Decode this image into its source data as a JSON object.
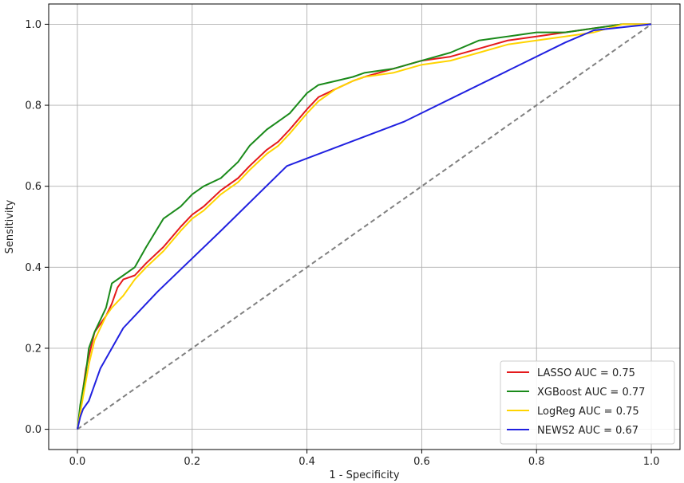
{
  "chart_data": {
    "type": "line",
    "title": "",
    "xlabel": "1 - Specificity",
    "ylabel": "Sensitivity",
    "xlim": [
      -0.05,
      1.05
    ],
    "ylim": [
      -0.05,
      1.05
    ],
    "xticks": [
      0.0,
      0.2,
      0.4,
      0.6,
      0.8,
      1.0
    ],
    "yticks": [
      0.0,
      0.2,
      0.4,
      0.6,
      0.8,
      1.0
    ],
    "xtick_labels": [
      "0.0",
      "0.2",
      "0.4",
      "0.6",
      "0.8",
      "1.0"
    ],
    "ytick_labels": [
      "0.0",
      "0.2",
      "0.4",
      "0.6",
      "0.8",
      "1.0"
    ],
    "grid": true,
    "legend_position": "lower-right",
    "reference_line": {
      "x": [
        0,
        1
      ],
      "y": [
        0,
        1
      ],
      "color": "#808080",
      "style": "dashed"
    },
    "series": [
      {
        "name": "LASSO AUC = 0.75",
        "color": "#e41a1c",
        "x": [
          0.0,
          0.005,
          0.01,
          0.015,
          0.02,
          0.025,
          0.03,
          0.04,
          0.05,
          0.06,
          0.07,
          0.08,
          0.1,
          0.12,
          0.15,
          0.18,
          0.2,
          0.22,
          0.25,
          0.28,
          0.3,
          0.33,
          0.35,
          0.37,
          0.4,
          0.42,
          0.45,
          0.48,
          0.5,
          0.55,
          0.6,
          0.65,
          0.7,
          0.75,
          0.8,
          0.85,
          0.9,
          0.95,
          1.0
        ],
        "y": [
          0.0,
          0.05,
          0.1,
          0.15,
          0.18,
          0.21,
          0.24,
          0.26,
          0.28,
          0.31,
          0.35,
          0.37,
          0.38,
          0.41,
          0.45,
          0.5,
          0.53,
          0.55,
          0.59,
          0.62,
          0.65,
          0.69,
          0.71,
          0.74,
          0.79,
          0.82,
          0.84,
          0.86,
          0.87,
          0.89,
          0.91,
          0.92,
          0.94,
          0.96,
          0.97,
          0.98,
          0.99,
          1.0,
          1.0
        ]
      },
      {
        "name": "XGBoost AUC = 0.77",
        "color": "#1a8a1a",
        "x": [
          0.0,
          0.005,
          0.01,
          0.015,
          0.02,
          0.025,
          0.03,
          0.04,
          0.05,
          0.06,
          0.08,
          0.1,
          0.12,
          0.15,
          0.18,
          0.2,
          0.22,
          0.25,
          0.28,
          0.3,
          0.33,
          0.35,
          0.37,
          0.4,
          0.42,
          0.45,
          0.48,
          0.5,
          0.55,
          0.6,
          0.65,
          0.7,
          0.75,
          0.8,
          0.85,
          0.9,
          0.95,
          1.0
        ],
        "y": [
          0.0,
          0.06,
          0.1,
          0.14,
          0.2,
          0.22,
          0.24,
          0.27,
          0.3,
          0.36,
          0.38,
          0.4,
          0.45,
          0.52,
          0.55,
          0.58,
          0.6,
          0.62,
          0.66,
          0.7,
          0.74,
          0.76,
          0.78,
          0.83,
          0.85,
          0.86,
          0.87,
          0.88,
          0.89,
          0.91,
          0.93,
          0.96,
          0.97,
          0.98,
          0.98,
          0.99,
          1.0,
          1.0
        ]
      },
      {
        "name": "LogReg AUC = 0.75",
        "color": "#ffd400",
        "x": [
          0.0,
          0.005,
          0.01,
          0.015,
          0.02,
          0.025,
          0.03,
          0.04,
          0.05,
          0.06,
          0.08,
          0.1,
          0.12,
          0.15,
          0.18,
          0.2,
          0.22,
          0.25,
          0.28,
          0.3,
          0.33,
          0.35,
          0.37,
          0.4,
          0.42,
          0.45,
          0.48,
          0.5,
          0.55,
          0.6,
          0.65,
          0.7,
          0.75,
          0.8,
          0.85,
          0.9,
          0.95,
          1.0
        ],
        "y": [
          0.0,
          0.04,
          0.08,
          0.12,
          0.16,
          0.19,
          0.22,
          0.25,
          0.28,
          0.3,
          0.33,
          0.37,
          0.4,
          0.44,
          0.49,
          0.52,
          0.54,
          0.58,
          0.61,
          0.64,
          0.68,
          0.7,
          0.73,
          0.78,
          0.81,
          0.84,
          0.86,
          0.87,
          0.88,
          0.9,
          0.91,
          0.93,
          0.95,
          0.96,
          0.97,
          0.98,
          1.0,
          1.0
        ]
      },
      {
        "name": "NEWS2 AUC = 0.67",
        "color": "#2020e0",
        "x": [
          0.0,
          0.005,
          0.01,
          0.02,
          0.03,
          0.04,
          0.08,
          0.14,
          0.25,
          0.365,
          0.57,
          0.85,
          0.9,
          1.0
        ],
        "y": [
          0.0,
          0.03,
          0.05,
          0.07,
          0.11,
          0.15,
          0.25,
          0.34,
          0.49,
          0.65,
          0.76,
          0.955,
          0.985,
          1.0
        ]
      }
    ]
  }
}
